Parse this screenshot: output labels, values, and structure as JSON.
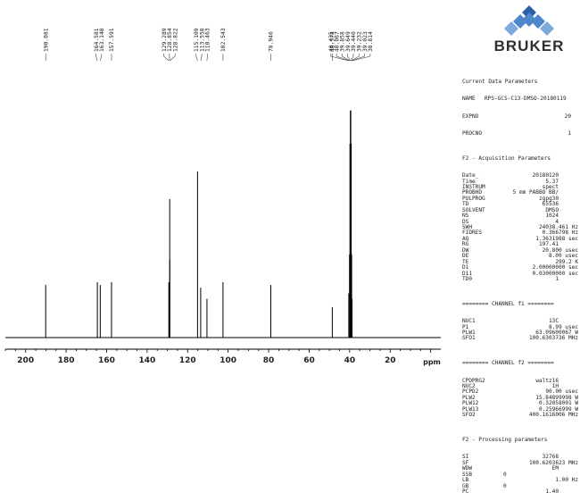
{
  "chart_data": {
    "type": "nmr-spectrum",
    "xlabel": "ppm",
    "xlim": [
      -5,
      210
    ],
    "x_reversed": true,
    "x_ticks": [
      200,
      180,
      160,
      140,
      120,
      100,
      80,
      60,
      40,
      20
    ],
    "x_tick_labels": [
      "200",
      "180",
      "160",
      "140",
      "120",
      "100",
      "80",
      "60",
      "40",
      "20"
    ],
    "peaks": [
      {
        "ppm": 190.081,
        "height": 0.19,
        "label": "190.081"
      },
      {
        "ppm": 164.581,
        "height": 0.2,
        "label": "164.581"
      },
      {
        "ppm": 163.148,
        "height": 0.19,
        "label": "163.148"
      },
      {
        "ppm": 157.591,
        "height": 0.2,
        "label": "157.591"
      },
      {
        "ppm": 129.289,
        "height": 0.2,
        "label": "129.289"
      },
      {
        "ppm": 128.854,
        "height": 0.5,
        "label": "128.854"
      },
      {
        "ppm": 128.822,
        "height": 0.28,
        "label": "128.822"
      },
      {
        "ppm": 115.109,
        "height": 0.6,
        "label": "115.109"
      },
      {
        "ppm": 113.558,
        "height": 0.18,
        "label": "113.558"
      },
      {
        "ppm": 110.463,
        "height": 0.14,
        "label": "110.463"
      },
      {
        "ppm": 102.543,
        "height": 0.2,
        "label": "102.543"
      },
      {
        "ppm": 78.946,
        "height": 0.19,
        "label": "78.946"
      },
      {
        "ppm": 48.574,
        "height": 0.11,
        "label": "48.574"
      },
      {
        "ppm": 40.435,
        "height": 0.16,
        "label": "40.435"
      },
      {
        "ppm": 40.067,
        "height": 0.3,
        "label": "40.067"
      },
      {
        "ppm": 39.858,
        "height": 0.7,
        "label": "39.858"
      },
      {
        "ppm": 39.649,
        "height": 0.82,
        "label": "39.649"
      },
      {
        "ppm": 39.44,
        "height": 0.82,
        "label": "39.440"
      },
      {
        "ppm": 39.232,
        "height": 0.7,
        "label": "39.232"
      },
      {
        "ppm": 39.023,
        "height": 0.3,
        "label": "39.023"
      },
      {
        "ppm": 38.814,
        "height": 0.14,
        "label": "38.814"
      }
    ]
  },
  "logo": {
    "text": "BRUKER"
  },
  "parameters": {
    "header": "Current Data Parameters",
    "name_key": "NAME",
    "name_value": "RPS-GCS-C13-DMSO-20180119",
    "expno_key": "EXPNO",
    "expno_value": "20",
    "procno_key": "PROCNO",
    "procno_value": "1",
    "f2_acq_header": "F2 - Acquisition Parameters",
    "acq": [
      {
        "k": "Date_",
        "v": "20180120",
        "u": ""
      },
      {
        "k": "Time",
        "v": "5.37",
        "u": ""
      },
      {
        "k": "INSTRUM",
        "v": "spect",
        "u": ""
      },
      {
        "k": "PROBHD",
        "v": "5 mm PABBO BB/",
        "u": ""
      },
      {
        "k": "PULPROG",
        "v": "zgpg30",
        "u": ""
      },
      {
        "k": "TD",
        "v": "65536",
        "u": ""
      },
      {
        "k": "SOLVENT",
        "v": "DMSO",
        "u": ""
      },
      {
        "k": "NS",
        "v": "1024",
        "u": ""
      },
      {
        "k": "DS",
        "v": "4",
        "u": ""
      },
      {
        "k": "SWH",
        "v": "24038.461",
        "u": "Hz"
      },
      {
        "k": "FIDRES",
        "v": "0.366798",
        "u": "Hz"
      },
      {
        "k": "AQ",
        "v": "1.3631988",
        "u": "sec"
      },
      {
        "k": "RG",
        "v": "197.41",
        "u": ""
      },
      {
        "k": "DW",
        "v": "20.800",
        "u": "usec"
      },
      {
        "k": "DE",
        "v": "8.00",
        "u": "usec"
      },
      {
        "k": "TE",
        "v": "299.2",
        "u": "K"
      },
      {
        "k": "D1",
        "v": "2.00000000",
        "u": "sec"
      },
      {
        "k": "D11",
        "v": "0.03000000",
        "u": "sec"
      },
      {
        "k": "TD0",
        "v": "1",
        "u": ""
      }
    ],
    "ch1_header": "======== CHANNEL f1 ========",
    "ch1": [
      {
        "k": "NUC1",
        "v": "13C",
        "u": ""
      },
      {
        "k": "P1",
        "v": "8.99",
        "u": "usec"
      },
      {
        "k": "PLW1",
        "v": "63.09600067",
        "u": "W"
      },
      {
        "k": "SFO1",
        "v": "100.6303736",
        "u": "MHz"
      }
    ],
    "ch2_header": "======== CHANNEL f2 ========",
    "ch2": [
      {
        "k": "CPDPRG2",
        "v": "waltz16",
        "u": ""
      },
      {
        "k": "NUC2",
        "v": "1H",
        "u": ""
      },
      {
        "k": "PCPD2",
        "v": "90.00",
        "u": "usec"
      },
      {
        "k": "PLW2",
        "v": "15.84899998",
        "u": "W"
      },
      {
        "k": "PLW12",
        "v": "0.32058001",
        "u": "W"
      },
      {
        "k": "PLW13",
        "v": "0.25966999",
        "u": "W"
      },
      {
        "k": "SFO2",
        "v": "400.1616006",
        "u": "MHz"
      }
    ],
    "f2_proc_header": "F2 - Processing parameters",
    "proc": [
      {
        "k": "SI",
        "v": "32768",
        "u": "",
        "align": "right"
      },
      {
        "k": "SF",
        "v": "100.6203623",
        "u": "MHz",
        "align": "right"
      },
      {
        "k": "WDW",
        "v": "EM",
        "u": "",
        "align": "right"
      },
      {
        "k": "SSB",
        "v": "0",
        "u": "",
        "align": "left"
      },
      {
        "k": "LB",
        "v": "1.00",
        "u": "Hz",
        "align": "right"
      },
      {
        "k": "GB",
        "v": "0",
        "u": "",
        "align": "left"
      },
      {
        "k": "PC",
        "v": "1.40",
        "u": "",
        "align": "right"
      }
    ]
  }
}
